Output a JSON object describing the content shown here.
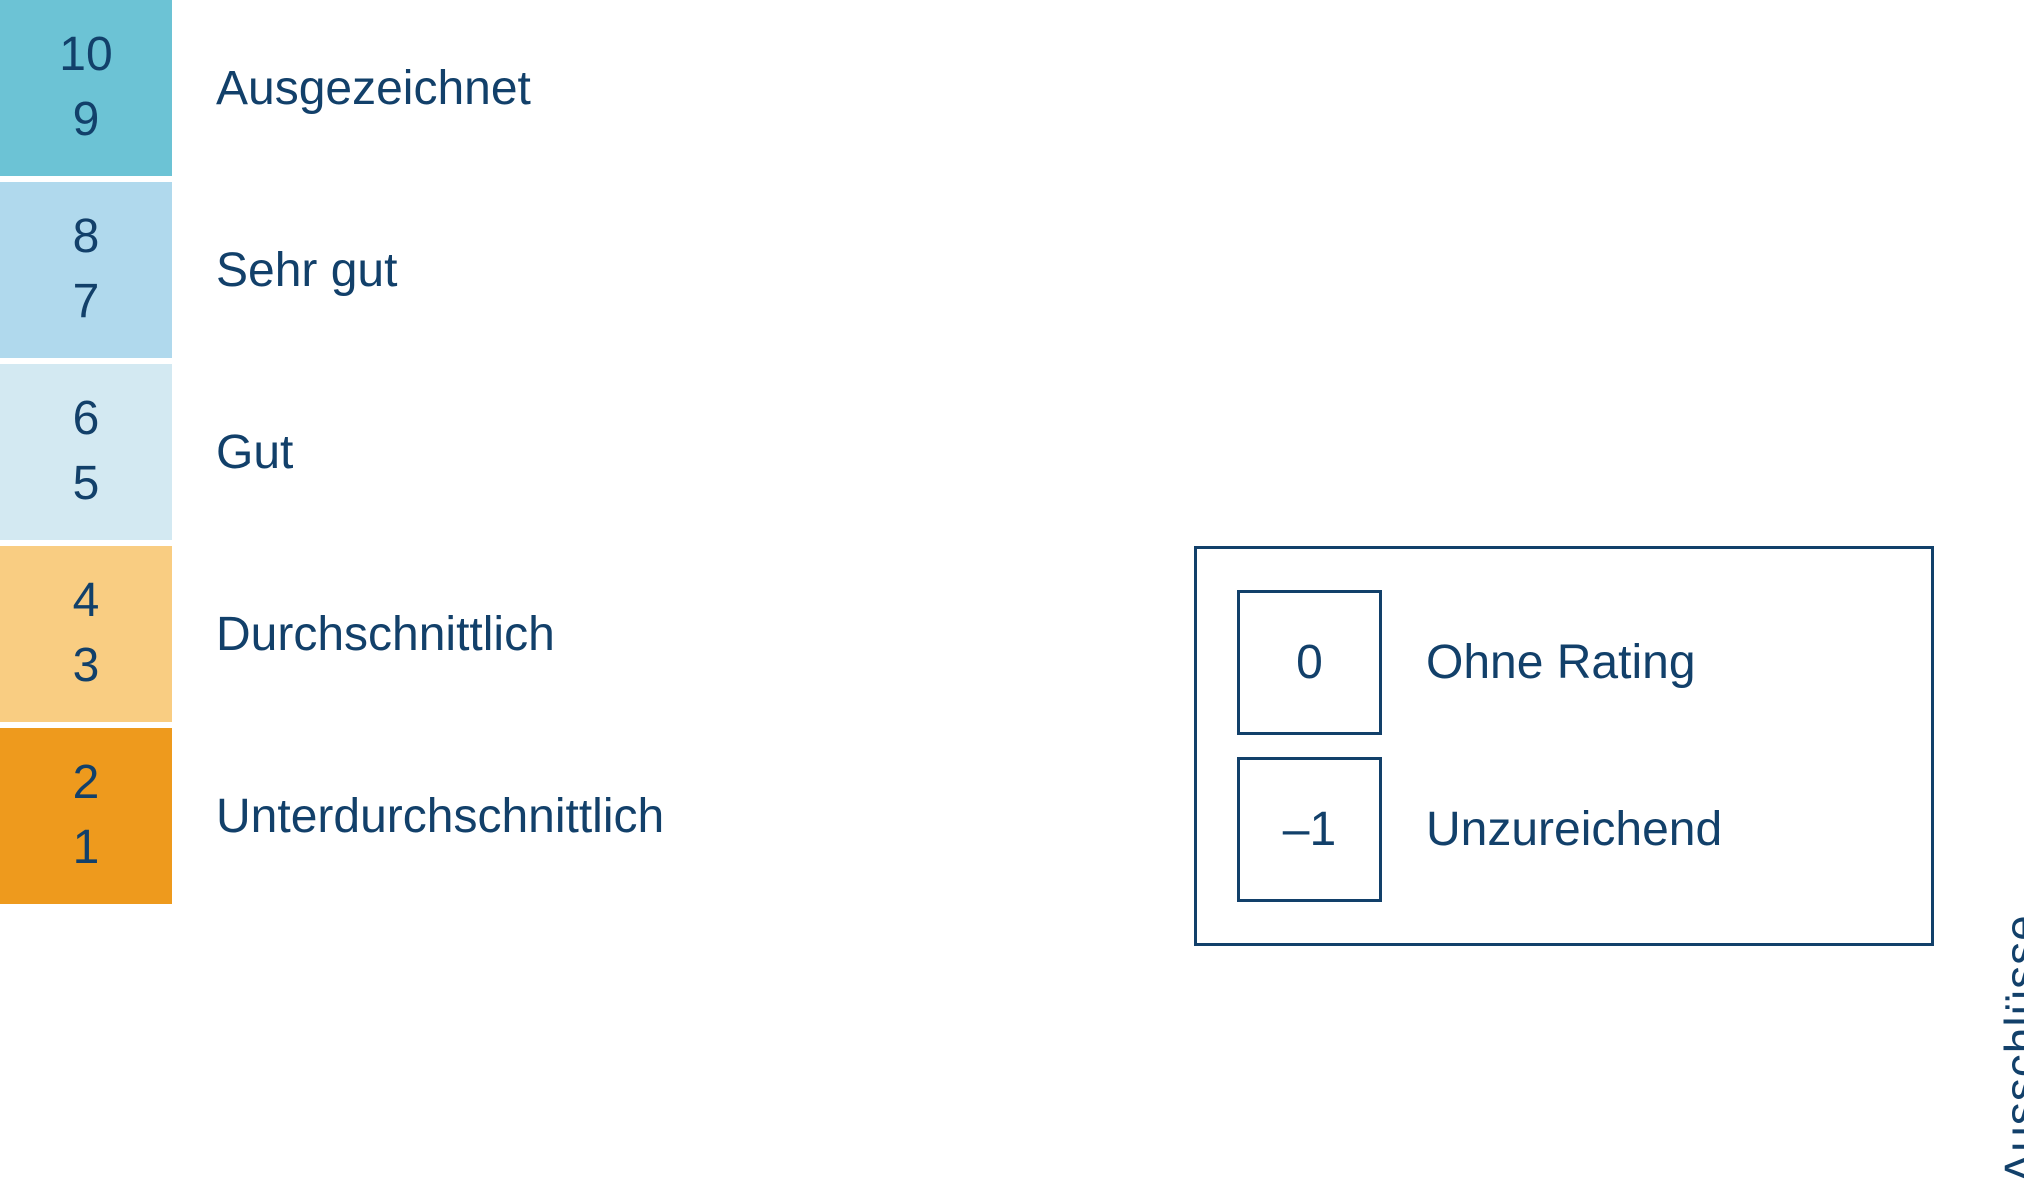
{
  "colors": {
    "text": "#12406a",
    "border": "#12406a",
    "background": "#ffffff"
  },
  "typography": {
    "fontFamily": "Segoe UI, Helvetica Neue, Arial, sans-serif",
    "numberFontSize": 48,
    "labelFontSize": 48,
    "verticalLabelFontSize": 46
  },
  "ratingScale": {
    "rows": [
      {
        "top": "10",
        "bottom": "9",
        "label": "Ausgezeichnet",
        "color": "#6cc3d5"
      },
      {
        "top": "8",
        "bottom": "7",
        "label": "Sehr gut",
        "color": "#b0d9ed"
      },
      {
        "top": "6",
        "bottom": "5",
        "label": "Gut",
        "color": "#d3e9f2"
      },
      {
        "top": "4",
        "bottom": "3",
        "label": "Durchschnittlich",
        "color": "#f9cd82"
      },
      {
        "top": "2",
        "bottom": "1",
        "label": "Unterdurchschnittlich",
        "color": "#ee9a1d"
      }
    ],
    "swatchWidth": 172,
    "swatchHeight": 176,
    "rowGap": 6
  },
  "exclusions": {
    "verticalLabel": "Ausschlüsse",
    "items": [
      {
        "value": "0",
        "label": "Ohne Rating"
      },
      {
        "value": "–1",
        "label": "Unzureichend"
      }
    ],
    "squareSize": 145,
    "boxBorderWidth": 3
  }
}
